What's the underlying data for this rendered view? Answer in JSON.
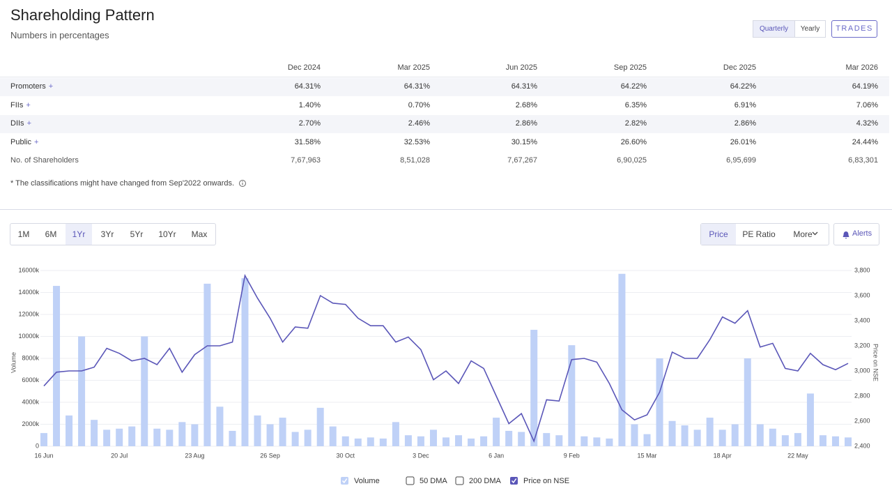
{
  "header": {
    "title": "Shareholding Pattern",
    "subtitle": "Numbers in percentages",
    "toggle": [
      "Quarterly",
      "Yearly"
    ],
    "active_toggle": 0,
    "trades": "TRADES"
  },
  "table": {
    "columns": [
      "Dec 2024",
      "Mar 2025",
      "Jun 2025",
      "Sep 2025",
      "Dec 2025",
      "Mar 2026"
    ],
    "rows": [
      {
        "label": "Promoters",
        "expand": "+",
        "cells": [
          "64.31%",
          "64.31%",
          "64.31%",
          "64.22%",
          "64.22%",
          "64.19%"
        ]
      },
      {
        "label": "FIIs",
        "expand": "+",
        "cells": [
          "1.40%",
          "0.70%",
          "2.68%",
          "6.35%",
          "6.91%",
          "7.06%"
        ]
      },
      {
        "label": "DIIs",
        "expand": "+",
        "cells": [
          "2.70%",
          "2.46%",
          "2.86%",
          "2.82%",
          "2.86%",
          "4.32%"
        ]
      },
      {
        "label": "Public",
        "expand": "+",
        "cells": [
          "31.58%",
          "32.53%",
          "30.15%",
          "26.60%",
          "26.01%",
          "24.44%"
        ]
      },
      {
        "label": "No. of Shareholders",
        "cells": [
          "7,67,963",
          "8,51,028",
          "7,67,267",
          "6,90,025",
          "6,95,699",
          "6,83,301"
        ]
      }
    ]
  },
  "note": "* The classifications might have changed from Sep'2022 onwards.",
  "ranges": [
    "1M",
    "6M",
    "1Yr",
    "3Yr",
    "5Yr",
    "10Yr",
    "Max"
  ],
  "active_range": 2,
  "views": [
    "Price",
    "PE Ratio",
    "More"
  ],
  "active_view": 0,
  "alerts": "Alerts",
  "chart_data": {
    "type": "combo",
    "categories": [
      "16 Jun",
      null,
      null,
      null,
      null,
      null,
      "20 Jul",
      null,
      null,
      null,
      null,
      null,
      "23 Aug",
      null,
      null,
      null,
      null,
      null,
      "26 Sep",
      null,
      null,
      null,
      null,
      null,
      "30 Oct",
      null,
      null,
      null,
      null,
      null,
      "3 Dec",
      null,
      null,
      null,
      null,
      null,
      "6 Jan",
      null,
      null,
      null,
      null,
      null,
      "9 Feb",
      null,
      null,
      null,
      null,
      null,
      "15 Mar",
      null,
      null,
      null,
      null,
      null,
      "18 Apr",
      null,
      null,
      null,
      null,
      null,
      "22 May",
      null,
      null,
      null,
      null
    ],
    "ylabel": "Volume",
    "y2label": "Price on NSE",
    "ylim": [
      0,
      16000
    ],
    "yticks": [
      0,
      {
        "value": 2000,
        "label": "2000k"
      },
      {
        "value": 4000,
        "label": "4000k"
      },
      {
        "value": 6000,
        "label": "6000k"
      },
      {
        "value": 8000,
        "label": "8000k"
      },
      {
        "value": 10000,
        "label": "10000k"
      },
      {
        "value": 12000,
        "label": "12000k"
      },
      {
        "value": 14000,
        "label": "14000k"
      },
      {
        "value": 16000,
        "label": "16000k"
      }
    ],
    "y2lim": [
      2400,
      3800
    ],
    "y2ticks": [
      {
        "value": 2400,
        "label": "2,400"
      },
      {
        "value": 2600,
        "label": "2,600"
      },
      {
        "value": 2800,
        "label": "2,800"
      },
      {
        "value": 3000,
        "label": "3,000"
      },
      {
        "value": 3200,
        "label": "3,200"
      },
      {
        "value": 3400,
        "label": "3,400"
      },
      {
        "value": 3600,
        "label": "3,600"
      },
      {
        "value": 3800,
        "label": "3,800"
      }
    ],
    "grid": true,
    "series": [
      {
        "name": "Volume",
        "type": "bar",
        "color": "#bfd1f7",
        "checked": true,
        "values": [
          1200,
          14600,
          2800,
          10000,
          2400,
          1500,
          1600,
          1800,
          10000,
          1600,
          1500,
          2200,
          2000,
          14800,
          3600,
          1400,
          15300,
          2800,
          2000,
          2600,
          1300,
          1500,
          3500,
          1800,
          900,
          700,
          800,
          700,
          2200,
          1000,
          900,
          1500,
          800,
          1000,
          700,
          900,
          2600,
          1400,
          1300,
          10600,
          1200,
          1000,
          9200,
          900,
          800,
          700,
          15700,
          2000,
          1100,
          8000,
          2300,
          1900,
          1500,
          2600,
          1500,
          2000,
          8000,
          2000,
          1600,
          1000,
          1200,
          4800,
          1000,
          900,
          800
        ]
      },
      {
        "name": "Price on NSE",
        "type": "line",
        "axis": "y2",
        "color": "#5a56b8",
        "checked": true,
        "values": [
          2880,
          2990,
          3000,
          3000,
          3030,
          3180,
          3140,
          3080,
          3100,
          3050,
          3180,
          2990,
          3130,
          3200,
          3200,
          3230,
          3760,
          3580,
          3420,
          3230,
          3350,
          3340,
          3600,
          3540,
          3530,
          3420,
          3360,
          3360,
          3230,
          3270,
          3170,
          2930,
          3000,
          2900,
          3080,
          3020,
          2800,
          2580,
          2660,
          2440,
          2770,
          2760,
          3090,
          3100,
          3070,
          2900,
          2690,
          2610,
          2650,
          2830,
          3150,
          3100,
          3100,
          3250,
          3430,
          3380,
          3480,
          3190,
          3220,
          3020,
          3000,
          3140,
          3050,
          3010,
          3060
        ]
      }
    ],
    "legend_off": [
      "50 DMA",
      "200 DMA"
    ]
  }
}
